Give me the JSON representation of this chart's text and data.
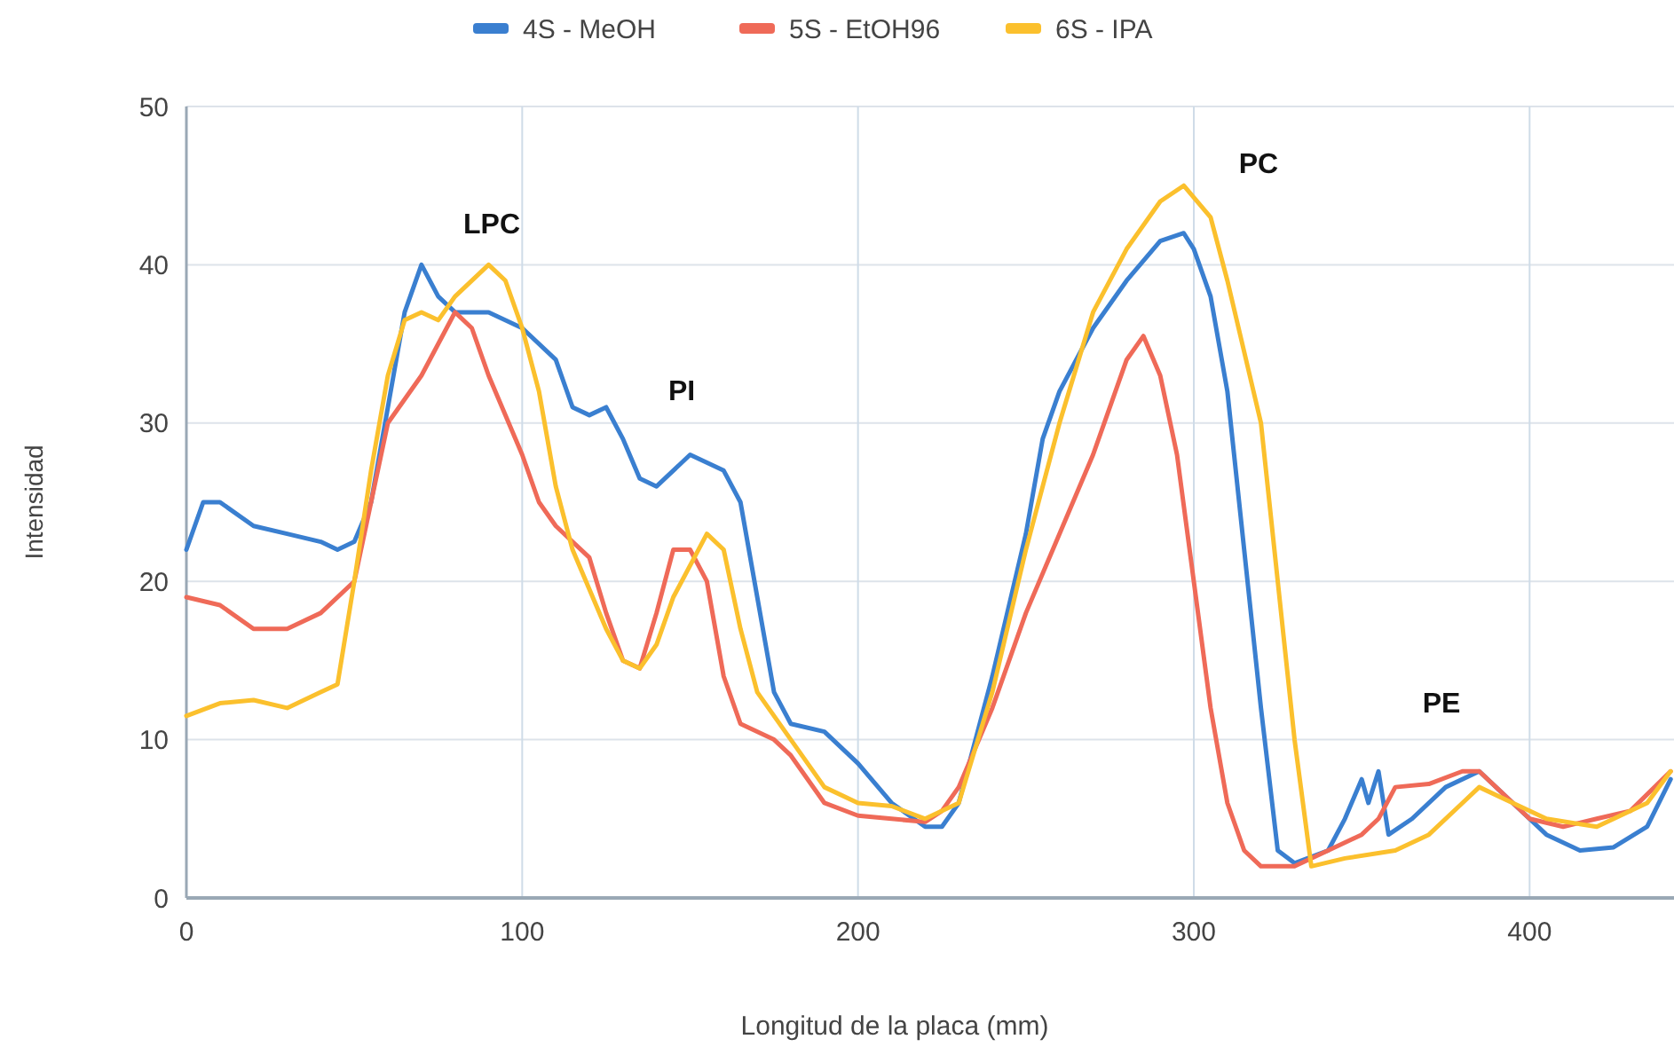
{
  "chart_data": {
    "type": "line",
    "xlabel": "Longitud de la placa (mm)",
    "ylabel": "Intensidad",
    "xlim": [
      0,
      443
    ],
    "xticks": [
      0,
      100,
      200,
      300,
      400
    ],
    "ylim": [
      0,
      50
    ],
    "yticks": [
      0,
      10,
      20,
      30,
      40,
      50
    ],
    "grid": true,
    "legend": "top",
    "marker": "none",
    "line_style": "solid",
    "annotations": [
      "LPC",
      "PI",
      "PC",
      "PE"
    ],
    "series": [
      {
        "name": "4S - MeOH",
        "color": "#3a7fd0",
        "x": [
          0,
          5,
          10,
          20,
          30,
          40,
          45,
          50,
          55,
          60,
          65,
          70,
          75,
          80,
          90,
          100,
          110,
          115,
          120,
          125,
          130,
          135,
          140,
          150,
          160,
          165,
          170,
          175,
          180,
          190,
          200,
          210,
          220,
          225,
          230,
          240,
          250,
          255,
          260,
          270,
          280,
          290,
          297,
          300,
          305,
          310,
          315,
          320,
          325,
          330,
          340,
          345,
          350,
          352,
          355,
          358,
          365,
          375,
          385,
          395,
          405,
          415,
          425,
          435,
          442
        ],
        "values": [
          22,
          25,
          25,
          23.5,
          23,
          22.5,
          22,
          22.5,
          25,
          31,
          37,
          40,
          38,
          37,
          37,
          36,
          34,
          31,
          30.5,
          31,
          29,
          26.5,
          26,
          28,
          27,
          25,
          19,
          13,
          11,
          10.5,
          8.5,
          6,
          4.5,
          4.5,
          6,
          14,
          23,
          29,
          32,
          36,
          39,
          41.5,
          42,
          41,
          38,
          32,
          22,
          12,
          3,
          2.2,
          3,
          5,
          7.5,
          6,
          8,
          4,
          5,
          7,
          8,
          6,
          4,
          3,
          3.2,
          4.5,
          7.5
        ]
      },
      {
        "name": "5S - EtOH96",
        "color": "#ef6a58",
        "x": [
          0,
          10,
          20,
          30,
          40,
          50,
          55,
          60,
          70,
          80,
          85,
          90,
          100,
          105,
          110,
          120,
          125,
          130,
          135,
          140,
          145,
          150,
          155,
          160,
          165,
          175,
          180,
          190,
          200,
          210,
          220,
          225,
          230,
          240,
          250,
          260,
          270,
          280,
          285,
          290,
          295,
          300,
          305,
          310,
          315,
          320,
          330,
          340,
          350,
          355,
          360,
          370,
          380,
          385,
          390,
          400,
          410,
          420,
          430,
          442
        ],
        "values": [
          19,
          18.5,
          17,
          17,
          18,
          20,
          25,
          30,
          33,
          37,
          36,
          33,
          28,
          25,
          23.5,
          21.5,
          18,
          15,
          14.5,
          18,
          22,
          22,
          20,
          14,
          11,
          10,
          9,
          6,
          5.2,
          5,
          4.8,
          5.5,
          7,
          12,
          18,
          23,
          28,
          34,
          35.5,
          33,
          28,
          20,
          12,
          6,
          3,
          2,
          2,
          3,
          4,
          5,
          7,
          7.2,
          8,
          8,
          7,
          5,
          4.5,
          5,
          5.5,
          8
        ]
      },
      {
        "name": "6S - IPA",
        "color": "#fbc02d",
        "x": [
          0,
          10,
          20,
          30,
          40,
          45,
          50,
          55,
          60,
          65,
          70,
          75,
          80,
          90,
          95,
          100,
          105,
          110,
          115,
          125,
          130,
          135,
          140,
          145,
          155,
          160,
          165,
          170,
          180,
          190,
          200,
          210,
          220,
          230,
          240,
          250,
          260,
          270,
          280,
          290,
          297,
          305,
          310,
          320,
          325,
          330,
          335,
          345,
          360,
          370,
          380,
          385,
          395,
          405,
          420,
          435,
          442
        ],
        "values": [
          11.5,
          12.3,
          12.5,
          12,
          13,
          13.5,
          20,
          27,
          33,
          36.5,
          37,
          36.5,
          38,
          40,
          39,
          36,
          32,
          26,
          22,
          17,
          15,
          14.5,
          16,
          19,
          23,
          22,
          17,
          13,
          10,
          7,
          6,
          5.8,
          5,
          6,
          13,
          22,
          30,
          37,
          41,
          44,
          45,
          43,
          39,
          30,
          20,
          10,
          2,
          2.5,
          3,
          4,
          6,
          7,
          6,
          5,
          4.5,
          6,
          8
        ]
      }
    ]
  }
}
